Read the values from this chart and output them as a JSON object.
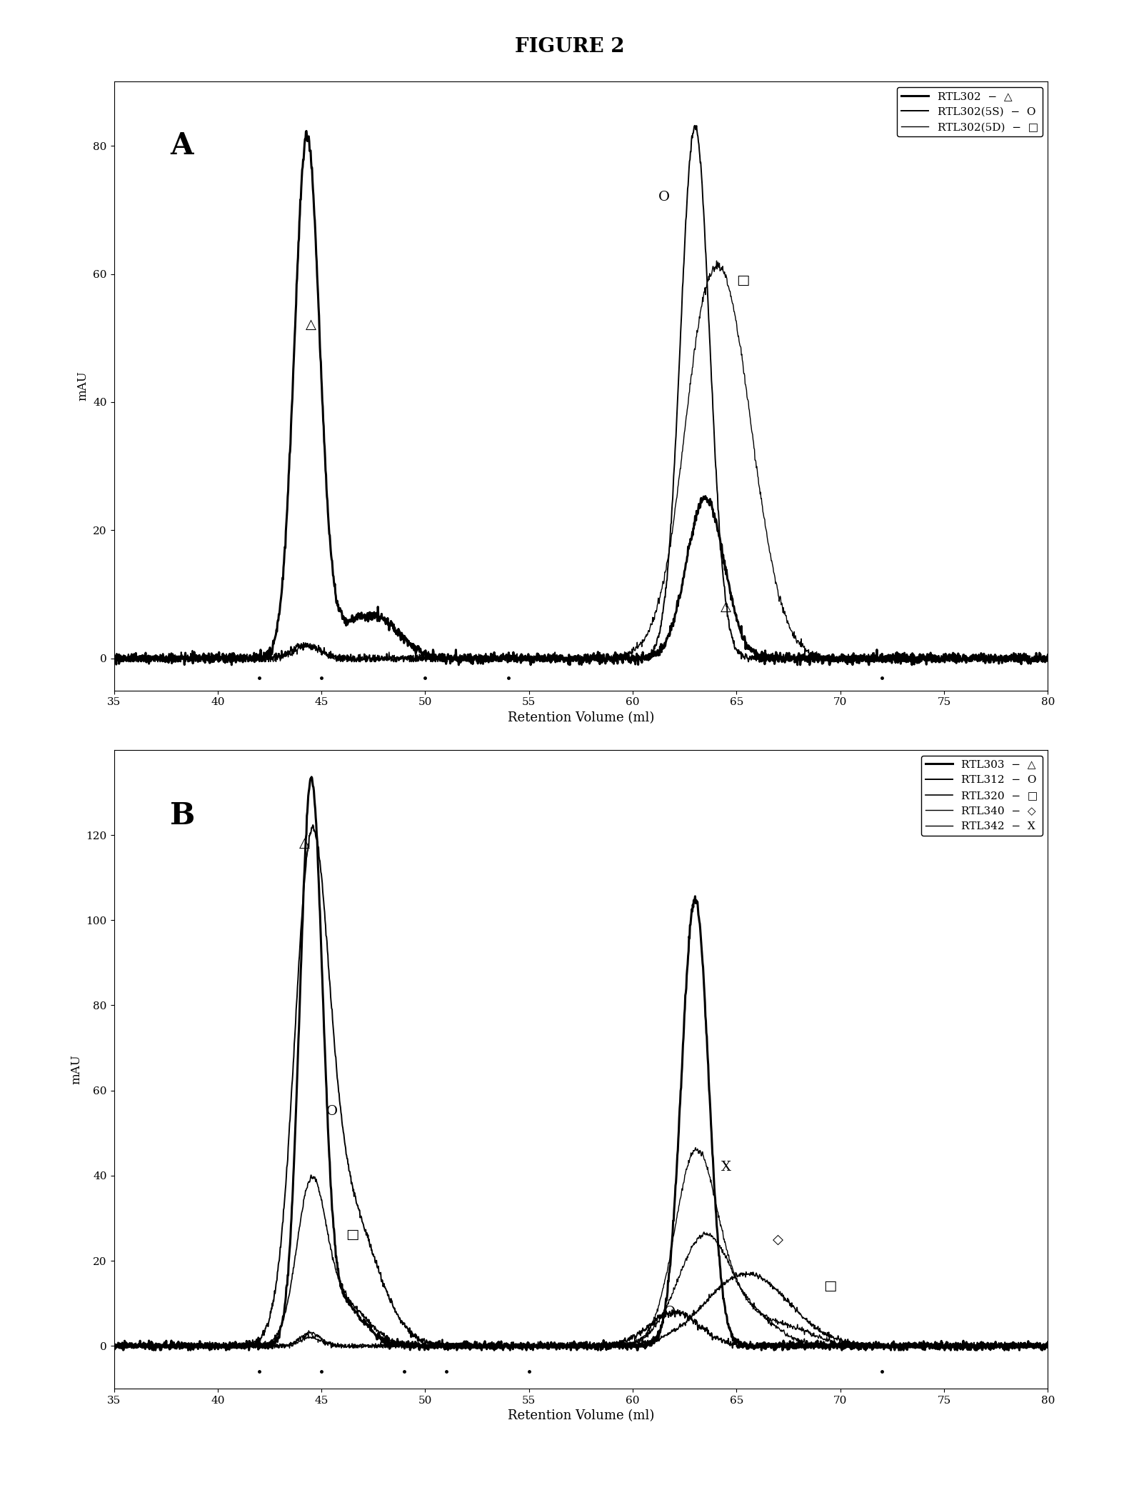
{
  "figure_title": "FIGURE 2",
  "panel_A": {
    "ylabel": "mAU",
    "xlabel": "Retention Volume (ml)",
    "xlim": [
      35,
      80
    ],
    "ylim": [
      -5,
      90
    ],
    "yticks": [
      0,
      20,
      40,
      60,
      80
    ],
    "xticks": [
      35,
      40,
      45,
      50,
      55,
      60,
      65,
      70,
      75,
      80
    ],
    "panel_label": "A",
    "dot_positions": [
      42,
      45,
      50,
      54,
      72
    ]
  },
  "panel_B": {
    "ylabel": "mAU",
    "xlabel": "Retention Volume (ml)",
    "xlim": [
      35,
      80
    ],
    "ylim": [
      -10,
      140
    ],
    "yticks": [
      0,
      20,
      40,
      60,
      80,
      100,
      120
    ],
    "xticks": [
      35,
      40,
      45,
      50,
      55,
      60,
      65,
      70,
      75,
      80
    ],
    "panel_label": "B",
    "dot_positions": [
      42,
      45,
      49,
      51,
      55,
      72
    ]
  }
}
